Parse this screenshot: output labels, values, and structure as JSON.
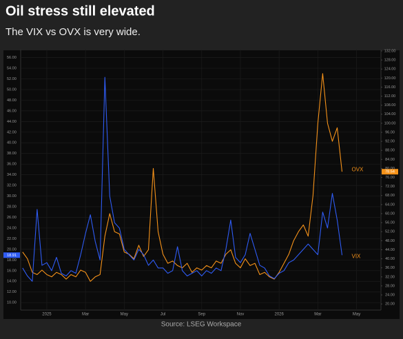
{
  "chart_data": {
    "type": "line",
    "title": "Oil stress still elevated",
    "subtitle": "The VIX vs OVX is very wide.",
    "source": "Source: LSEG Workspace",
    "grid": true,
    "x": [
      -1.25,
      -1,
      -0.75,
      -0.5,
      -0.25,
      0,
      0.25,
      0.5,
      0.75,
      1,
      1.25,
      1.5,
      1.75,
      2,
      2.25,
      2.5,
      2.75,
      3,
      3.25,
      3.5,
      3.75,
      4,
      4.25,
      4.5,
      4.75,
      5,
      5.25,
      5.5,
      5.75,
      6,
      6.25,
      6.5,
      6.75,
      7,
      7.25,
      7.5,
      7.75,
      8,
      8.25,
      8.5,
      8.75,
      9,
      9.25,
      9.5,
      9.75,
      10,
      10.25,
      10.5,
      10.75,
      11,
      11.25,
      11.5,
      11.75,
      12,
      12.25,
      12.5,
      12.75,
      13,
      13.25,
      13.5,
      13.75,
      14,
      14.25,
      14.5,
      14.75,
      15,
      15.25
    ],
    "xlim": [
      -1.35,
      17.26
    ],
    "xticks": [
      {
        "value": 0,
        "label": "2025"
      },
      {
        "value": 2,
        "label": "Mar"
      },
      {
        "value": 4,
        "label": "May"
      },
      {
        "value": 6,
        "label": "Jul"
      },
      {
        "value": 8,
        "label": "Sep"
      },
      {
        "value": 10,
        "label": "Nov"
      },
      {
        "value": 12,
        "label": "2026"
      },
      {
        "value": 14,
        "label": "Mar"
      },
      {
        "value": 16,
        "label": "May"
      }
    ],
    "ylim": [
      8.6,
      57.5
    ],
    "yticks": [
      {
        "value": 10,
        "label": "10.00"
      },
      {
        "value": 12,
        "label": "12.00"
      },
      {
        "value": 14,
        "label": "14.00"
      },
      {
        "value": 16,
        "label": "16.00"
      },
      {
        "value": 18,
        "label": "18.00"
      },
      {
        "value": 20,
        "label": "20.00"
      },
      {
        "value": 22,
        "label": "22.00"
      },
      {
        "value": 24,
        "label": "24.00"
      },
      {
        "value": 26,
        "label": "26.00"
      },
      {
        "value": 28,
        "label": "28.00"
      },
      {
        "value": 30,
        "label": "30.00"
      },
      {
        "value": 32,
        "label": "32.00"
      },
      {
        "value": 34,
        "label": "34.00"
      },
      {
        "value": 36,
        "label": "36.00"
      },
      {
        "value": 38,
        "label": "38.00"
      },
      {
        "value": 40,
        "label": "40.00"
      },
      {
        "value": 42,
        "label": "42.00"
      },
      {
        "value": 44,
        "label": "44.00"
      },
      {
        "value": 46,
        "label": "46.00"
      },
      {
        "value": 48,
        "label": "48.00"
      },
      {
        "value": 50,
        "label": "50.00"
      },
      {
        "value": 52,
        "label": "52.00"
      },
      {
        "value": 54,
        "label": "54.00"
      },
      {
        "value": 56,
        "label": "56.00"
      }
    ],
    "y2lim": [
      17.3,
      132.6
    ],
    "y2ticks": [
      {
        "value": 20,
        "label": "20.00"
      },
      {
        "value": 24,
        "label": "24.00"
      },
      {
        "value": 28,
        "label": "28.00"
      },
      {
        "value": 32,
        "label": "32.00"
      },
      {
        "value": 36,
        "label": "36.00"
      },
      {
        "value": 40,
        "label": "40.00"
      },
      {
        "value": 44,
        "label": "44.00"
      },
      {
        "value": 48,
        "label": "48.00"
      },
      {
        "value": 52,
        "label": "52.00"
      },
      {
        "value": 56,
        "label": "56.00"
      },
      {
        "value": 60,
        "label": "60.00"
      },
      {
        "value": 64,
        "label": "64.00"
      },
      {
        "value": 68,
        "label": "68.00"
      },
      {
        "value": 72,
        "label": "72.00"
      },
      {
        "value": 76,
        "label": "76.00"
      },
      {
        "value": 80,
        "label": "80.00"
      },
      {
        "value": 84,
        "label": "84.00"
      },
      {
        "value": 88,
        "label": "88.00"
      },
      {
        "value": 92,
        "label": "92.00"
      },
      {
        "value": 96,
        "label": "96.00"
      },
      {
        "value": 100,
        "label": "100.00"
      },
      {
        "value": 104,
        "label": "104.00"
      },
      {
        "value": 108,
        "label": "108.00"
      },
      {
        "value": 112,
        "label": "112.00"
      },
      {
        "value": 116,
        "label": "116.00"
      },
      {
        "value": 120,
        "label": "120.00"
      },
      {
        "value": 124,
        "label": "124.00"
      },
      {
        "value": 128,
        "label": "128.00"
      },
      {
        "value": 132,
        "label": "132.00"
      }
    ],
    "series": [
      {
        "name": "OVX",
        "color": "#f7931a",
        "axis": "y2",
        "values": [
          43,
          40,
          34,
          33,
          35,
          33,
          32,
          34,
          33,
          31,
          33,
          32,
          35,
          34,
          30,
          32,
          33,
          50,
          60,
          52,
          51,
          43,
          42,
          40,
          46,
          41,
          44,
          80,
          52,
          42,
          38,
          39,
          37,
          36,
          38,
          34,
          36,
          35,
          37,
          36,
          39,
          38,
          42,
          44,
          38,
          36,
          40,
          37,
          38,
          33,
          34,
          32,
          31,
          34,
          38,
          42,
          48,
          52,
          55,
          50,
          68,
          100,
          122,
          100,
          92,
          98,
          78.54
        ]
      },
      {
        "name": "VIX",
        "color": "#2f5cf5",
        "axis": "y",
        "values": [
          16.5,
          15,
          14,
          27.5,
          17,
          17.5,
          16,
          18.5,
          15.5,
          15,
          16,
          15.5,
          19,
          23,
          26.5,
          21.5,
          18,
          52.3,
          30,
          25,
          24,
          20,
          19,
          18,
          20,
          19,
          17,
          18,
          16.5,
          16.5,
          15.5,
          16,
          20.5,
          16,
          15,
          15.5,
          16,
          15,
          16,
          15.5,
          16.5,
          16,
          20,
          25.5,
          18.5,
          17.5,
          19,
          23,
          20,
          17,
          16.5,
          15,
          14.5,
          15.5,
          16,
          17.5,
          18,
          19,
          20,
          21,
          20,
          19,
          27,
          24,
          30.5,
          25.5,
          18.91
        ]
      }
    ]
  }
}
